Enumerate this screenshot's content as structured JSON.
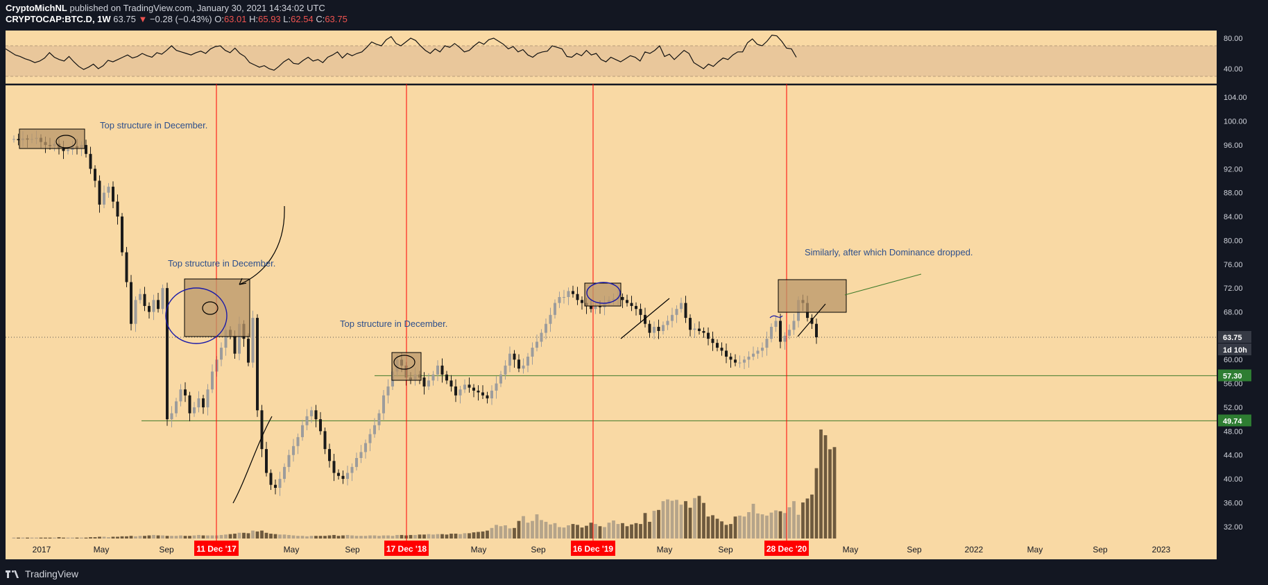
{
  "header": {
    "author": "CryptoMichNL",
    "published_text": "published on TradingView.com, January 30, 2021 14:34:02 UTC",
    "symbol": "CRYPTOCAP:BTC.D, 1W",
    "last": "63.75",
    "change_arrow": "▼",
    "change": "−0.28 (−0.43%)",
    "o_label": "O:",
    "o": "63.01",
    "h_label": "H:",
    "h": "65.93",
    "l_label": "L:",
    "l": "62.54",
    "c_label": "C:",
    "c": "63.75"
  },
  "footer": {
    "brand": "TradingView"
  },
  "colors": {
    "chart_bg": "#f9d9a4",
    "dark_bg": "#131722",
    "red_line": "#ff0000",
    "green_line": "#3e7a2a",
    "annotation_text": "#2d4f8c",
    "volume_dark": "#6e5a3e",
    "volume_light": "#b5a48a",
    "candle_up": "#9c9c9c",
    "candle_down": "#1a1a1a",
    "box_fill": "#b8956a"
  },
  "chart_data": [
    {
      "type": "line",
      "title": "RSI",
      "ylim": [
        20,
        90
      ],
      "y_ticks": [
        "80.00",
        "40.00"
      ],
      "band": [
        30,
        70
      ],
      "series": [
        {
          "values": [
            66,
            62,
            58,
            56,
            53,
            51,
            48,
            50,
            54,
            61,
            55,
            52,
            50,
            56,
            49,
            43,
            39,
            42,
            46,
            40,
            44,
            51,
            49,
            52,
            55,
            58,
            54,
            56,
            60,
            57,
            55,
            61,
            59,
            64,
            70,
            64,
            62,
            60,
            58,
            61,
            63,
            60,
            66,
            69,
            70,
            64,
            61,
            67,
            60,
            56,
            48,
            45,
            42,
            44,
            40,
            38,
            43,
            49,
            53,
            47,
            46,
            51,
            55,
            50,
            52,
            48,
            55,
            58,
            62,
            54,
            60,
            57,
            60,
            62,
            68,
            75,
            72,
            70,
            78,
            82,
            73,
            70,
            75,
            80,
            77,
            70,
            64,
            60,
            66,
            62,
            70,
            68,
            73,
            68,
            62,
            64,
            70,
            75,
            72,
            78,
            80,
            76,
            72,
            66,
            69,
            62,
            65,
            58,
            55,
            60,
            62,
            63,
            70,
            68,
            66,
            56,
            55,
            60,
            57,
            64,
            58,
            60,
            52,
            49,
            55,
            52,
            49,
            53,
            57,
            55,
            50,
            62,
            60,
            64,
            70,
            56,
            59,
            52,
            58,
            64,
            60,
            48,
            44,
            40,
            46,
            43,
            49,
            54,
            52,
            58,
            62,
            62,
            74,
            79,
            72,
            70,
            76,
            84,
            83,
            76,
            67,
            66,
            55
          ]
        }
      ]
    },
    {
      "type": "candlestick",
      "title": "CRYPTOCAP:BTC.D, 1W",
      "y_axis_labels": [
        "104.00",
        "100.00",
        "96.00",
        "92.00",
        "88.00",
        "84.00",
        "80.00",
        "76.00",
        "72.00",
        "68.00",
        "64.00",
        "60.00",
        "56.00",
        "52.00",
        "48.00",
        "44.00",
        "40.00",
        "36.00",
        "32.00"
      ],
      "ylim": [
        30,
        106
      ],
      "x_axis_labels": [
        "2017",
        "May",
        "Sep",
        "May",
        "Sep",
        "May",
        "Sep",
        "May",
        "Sep",
        "May",
        "Sep",
        "2022",
        "May",
        "Sep",
        "2023"
      ],
      "highlighted_dates": [
        "11 Dec '17",
        "17 Dec '18",
        "16 Dec '19",
        "28 Dec '20"
      ],
      "price_badges": [
        {
          "label": "63.75",
          "color": "#363a45"
        },
        {
          "label": "1d 10h",
          "color": "#363a45"
        },
        {
          "label": "57.30",
          "color": "#2e7d32"
        },
        {
          "label": "49.74",
          "color": "#2e7d32"
        }
      ],
      "levels": [
        63.75,
        57.3,
        49.74
      ],
      "closes": [
        97.0,
        96.8,
        97.1,
        96.9,
        97.0,
        97.2,
        96.5,
        96.0,
        95.8,
        96.2,
        95.5,
        95.0,
        95.2,
        95.8,
        95.5,
        96.0,
        94.5,
        92.0,
        90.0,
        86.0,
        88.0,
        89.0,
        86.5,
        84.0,
        78.0,
        73.0,
        66.0,
        70.0,
        71.0,
        69.0,
        68.0,
        70.0,
        68.5,
        72.0,
        50.0,
        51.0,
        53.0,
        55.0,
        54.0,
        51.0,
        52.0,
        53.5,
        52.0,
        55.0,
        58.0,
        60.0,
        62.0,
        65.0,
        64.0,
        61.0,
        66.0,
        63.5,
        59.5,
        67.0,
        51.5,
        45.0,
        41.0,
        39.0,
        38.5,
        40.0,
        42.0,
        44.0,
        45.5,
        47.0,
        49.0,
        50.5,
        51.5,
        50.0,
        48.0,
        45.0,
        43.0,
        41.0,
        40.5,
        40.0,
        41.0,
        42.0,
        43.5,
        44.5,
        46.0,
        47.5,
        49.0,
        51.0,
        54.0,
        55.5,
        58.0,
        60.0,
        59.0,
        57.0,
        56.5,
        57.5,
        57.0,
        55.5,
        56.5,
        57.5,
        59.0,
        57.5,
        56.5,
        55.5,
        54.0,
        55.0,
        55.8,
        55.3,
        54.8,
        54.5,
        54.0,
        53.5,
        54.8,
        56.0,
        57.5,
        59.0,
        61.0,
        60.0,
        58.5,
        59.0,
        60.5,
        62.0,
        63.0,
        64.5,
        66.0,
        67.5,
        69.5,
        70.5,
        70.5,
        71.5,
        71.0,
        70.0,
        69.5,
        69.0,
        68.5,
        69.0,
        68.8,
        69.5,
        70.0,
        70.2,
        70.5,
        70.0,
        69.5,
        69.0,
        68.5,
        67.5,
        66.0,
        64.5,
        65.5,
        64.8,
        65.8,
        66.5,
        67.5,
        68.5,
        69.5,
        67.0,
        65.0,
        65.2,
        64.8,
        64.5,
        63.5,
        62.8,
        62.0,
        61.5,
        60.5,
        60.0,
        59.5,
        59.5,
        60.0,
        60.5,
        61.0,
        61.5,
        62.0,
        63.5,
        65.5,
        66.5,
        63.0,
        64.0,
        65.0,
        66.5,
        70.0,
        69.5,
        67.0,
        66.0,
        63.75
      ],
      "volume": [
        0.2,
        0.2,
        0.2,
        0.2,
        0.2,
        0.2,
        0.2,
        0.2,
        0.2,
        0.2,
        0.3,
        0.2,
        0.2,
        0.2,
        0.2,
        0.2,
        0.2,
        0.3,
        0.3,
        0.4,
        0.4,
        0.3,
        0.4,
        0.4,
        0.5,
        0.5,
        0.6,
        0.5,
        0.6,
        0.6,
        0.7,
        0.8,
        0.7,
        0.7,
        0.6,
        0.6,
        0.6,
        0.7,
        0.6,
        0.6,
        0.7,
        0.8,
        0.7,
        0.7,
        0.7,
        0.7,
        0.8,
        0.9,
        1.0,
        1.1,
        1.3,
        1.3,
        1.2,
        1.8,
        1.6,
        1.8,
        1.3,
        1.1,
        1.0,
        0.9,
        0.9,
        0.8,
        0.7,
        0.6,
        0.6,
        0.5,
        0.6,
        0.6,
        0.6,
        0.6,
        0.7,
        0.8,
        0.6,
        0.7,
        0.8,
        0.7,
        0.6,
        0.6,
        0.6,
        0.7,
        0.7,
        0.6,
        0.7,
        0.7,
        0.6,
        0.8,
        0.8,
        0.7,
        0.8,
        0.8,
        0.9,
        0.9,
        1.0,
        0.9,
        1.0,
        1.0,
        0.9,
        1.1,
        1.1,
        1.0,
        1.2,
        1.2,
        1.4,
        1.5,
        1.6,
        1.8,
        2.4,
        3.1,
        2.8,
        3.0,
        2.3,
        2.4,
        4.0,
        5.1,
        3.6,
        4.0,
        5.5,
        4.2,
        3.8,
        3.2,
        3.5,
        2.6,
        2.5,
        3.0,
        3.3,
        3.1,
        2.5,
        2.9,
        3.6,
        3.3,
        2.8,
        2.6,
        3.6,
        4.1,
        3.3,
        3.5,
        2.8,
        3.2,
        3.5,
        3.3,
        5.8,
        3.8,
        6.3,
        6.5,
        8.5,
        8.9,
        8.6,
        8.8,
        7.7,
        8.5,
        7.0,
        9.2,
        9.7,
        8.1,
        5.0,
        5.3,
        4.5,
        3.9,
        3.1,
        3.3,
        5.0,
        5.2,
        5.0,
        6.0,
        7.9,
        5.7,
        5.5,
        5.2,
        5.9,
        6.4,
        6.2,
        5.8,
        7.1,
        8.5,
        5.4,
        8.2,
        9.1,
        10.0,
        16.0,
        24.8,
        23.5,
        20.3,
        20.8
      ]
    }
  ],
  "annotations": {
    "note1": "Top structure in December.",
    "note2": "Top structure in December.",
    "note3": "Top structure in December.",
    "note4": "Similarly, after which Dominance dropped."
  }
}
